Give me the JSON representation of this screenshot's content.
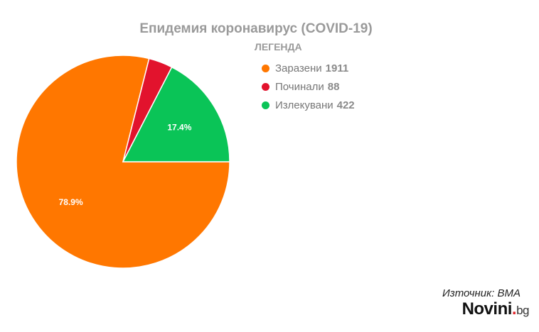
{
  "chart_data": {
    "type": "pie",
    "title": "Епидемия коронавирус (COVID-19)",
    "legend_title": "ЛЕГЕНДА",
    "legend_position": "top-right",
    "slices": [
      {
        "name": "Заразени",
        "value": 1911,
        "color": "#ff7700",
        "percent_label": "78.9%"
      },
      {
        "name": "Починали",
        "value": 88,
        "color": "#e2132d",
        "percent_label": ""
      },
      {
        "name": "Излекувани",
        "value": 422,
        "color": "#0ac457",
        "percent_label": "17.4%"
      }
    ]
  },
  "source": "Източник: ВМА",
  "brand": {
    "name": "Novini",
    "dot": ".",
    "tld": "bg"
  }
}
